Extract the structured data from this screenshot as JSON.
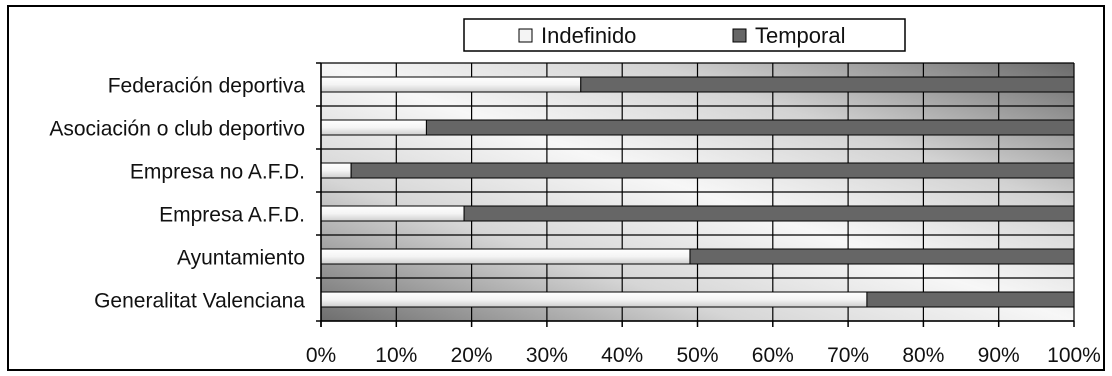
{
  "chart_data": {
    "type": "bar",
    "orientation": "horizontal",
    "stacked": "percent",
    "categories": [
      "Federación deportiva",
      "Asociación o club deportivo",
      "Empresa no A.F.D.",
      "Empresa A.F.D.",
      "Ayuntamiento",
      "Generalitat Valenciana"
    ],
    "series": [
      {
        "name": "Indefinido",
        "values": [
          34.5,
          14,
          4,
          19,
          49,
          72.5
        ]
      },
      {
        "name": "Temporal",
        "values": [
          65.5,
          86,
          96,
          81,
          51,
          27.5
        ]
      }
    ],
    "xlim": [
      0,
      100
    ],
    "x_ticks": [
      "0%",
      "10%",
      "20%",
      "30%",
      "40%",
      "50%",
      "60%",
      "70%",
      "80%",
      "90%",
      "100%"
    ],
    "grid": true,
    "legend_position": "top"
  },
  "colors": {
    "indefinido": "#f4f4f4",
    "temporal": "#666666",
    "frame": "#000000"
  }
}
